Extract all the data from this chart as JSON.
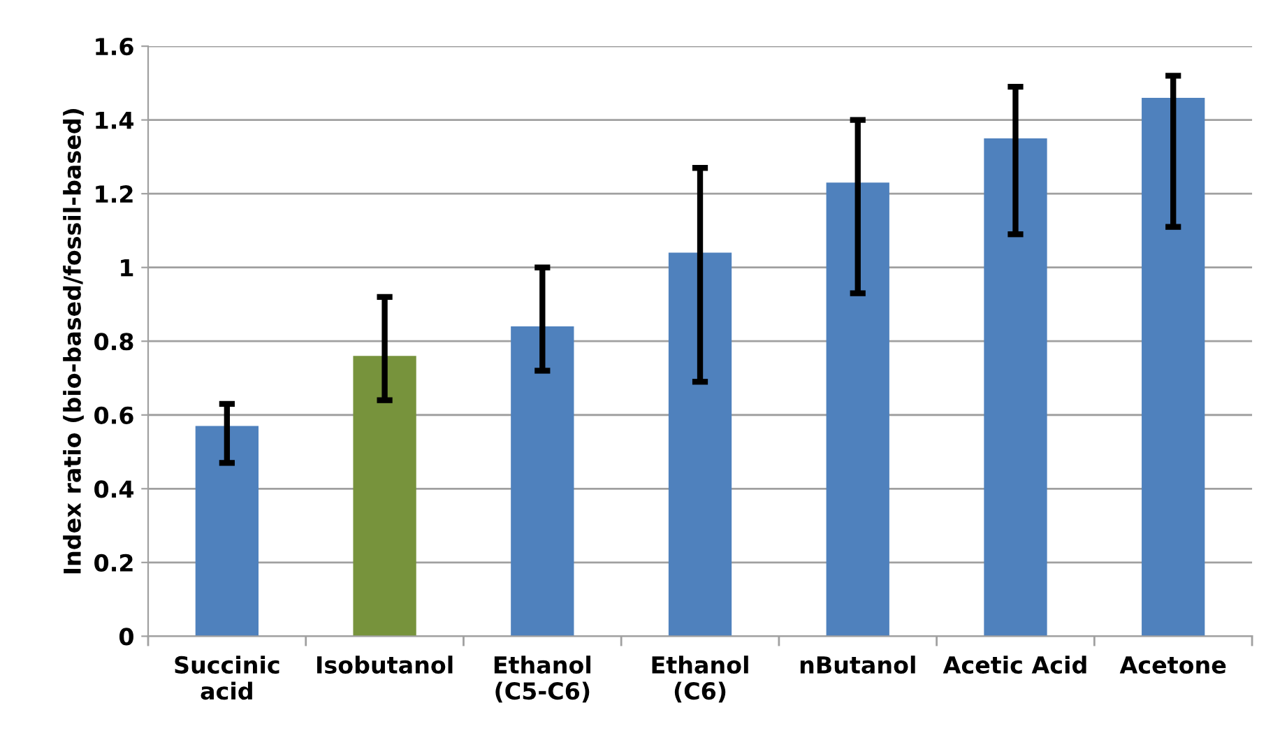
{
  "chart_data": {
    "type": "bar",
    "ylabel": "Index ratio (bio-based/fossil-based)",
    "categories": [
      "Succinic\nacid",
      "Isobutanol",
      "Ethanol\n(C5-C6)",
      "Ethanol\n(C6)",
      "nButanol",
      "Acetic Acid",
      "Acetone"
    ],
    "values": [
      0.57,
      0.76,
      0.84,
      1.04,
      1.23,
      1.35,
      1.46
    ],
    "colors": [
      "#4f81bd",
      "#77933c",
      "#4f81bd",
      "#4f81bd",
      "#4f81bd",
      "#4f81bd",
      "#4f81bd"
    ],
    "errors": [
      [
        0.47,
        0.63
      ],
      [
        0.64,
        0.92
      ],
      [
        0.72,
        1.0
      ],
      [
        0.69,
        1.27
      ],
      [
        0.93,
        1.4
      ],
      [
        1.09,
        1.49
      ],
      [
        1.11,
        1.52
      ]
    ],
    "ylim": [
      0,
      1.6
    ],
    "yticks": [
      0,
      0.2,
      0.4,
      0.6,
      0.8,
      1,
      1.2,
      1.4,
      1.6
    ],
    "grid": "y"
  }
}
